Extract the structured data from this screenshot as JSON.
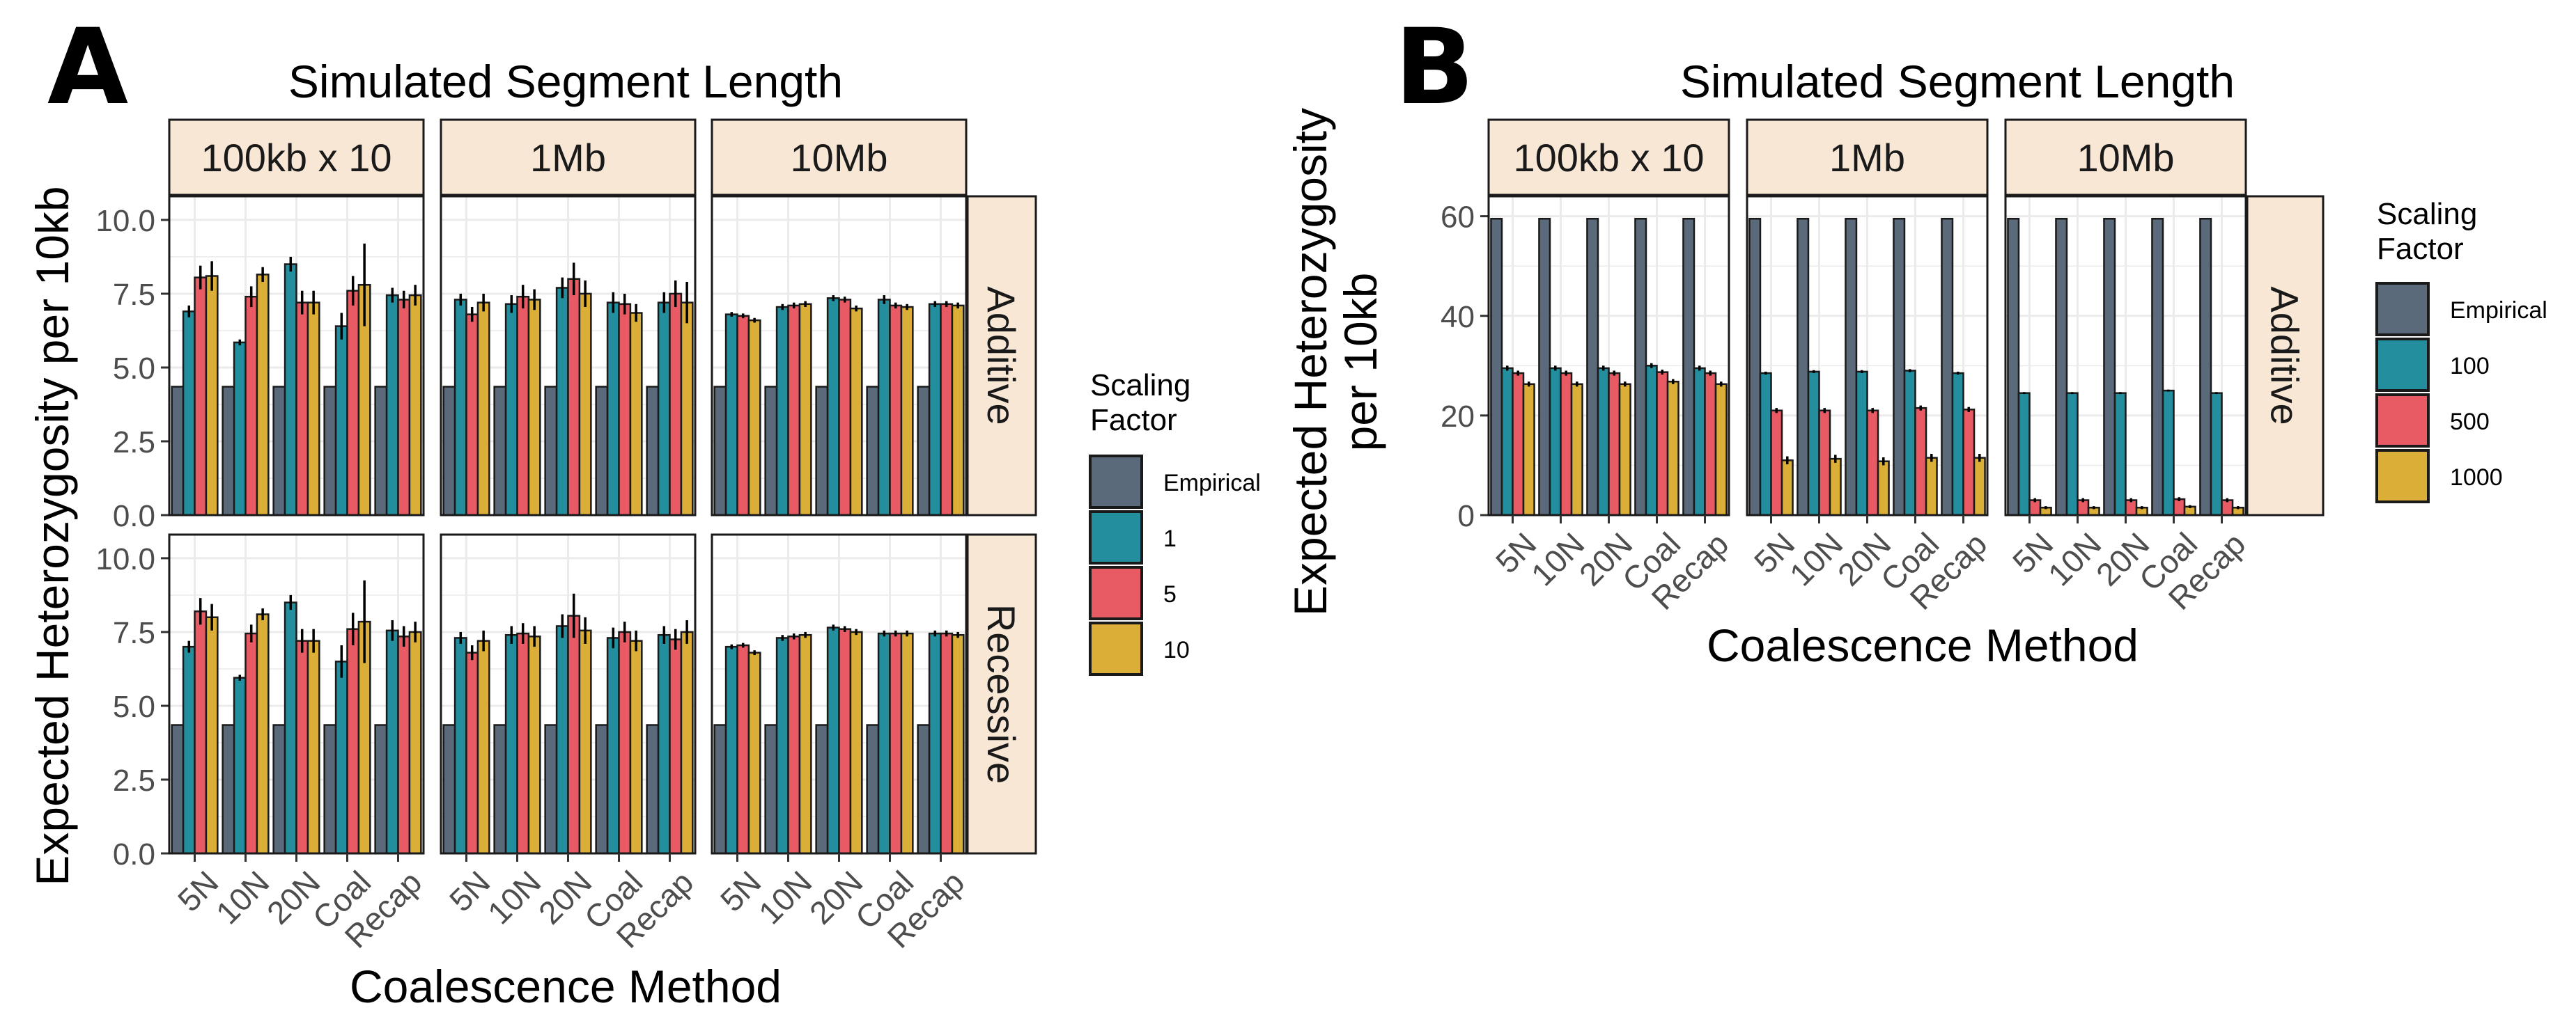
{
  "chart_data": [
    {
      "panel_label": "A",
      "type": "bar",
      "title": "Simulated Segment Length",
      "xlabel": "Coalescence Method",
      "ylabel": "Expected Heterozygosity per 10kb",
      "ylim": [
        0,
        10.8
      ],
      "yticks": [
        "0.0",
        "2.5",
        "5.0",
        "7.5",
        "10.0"
      ],
      "ytick_values": [
        0,
        2.5,
        5,
        7.5,
        10
      ],
      "grid": true,
      "legend": {
        "title": "Scaling Factor",
        "placement": "right",
        "entries": [
          "Empirical",
          "1",
          "5",
          "10"
        ]
      },
      "categories": [
        "5N",
        "10N",
        "20N",
        "Coal",
        "Recap"
      ],
      "column_facets": [
        "100kb x 10",
        "1Mb",
        "10Mb"
      ],
      "row_facets": [
        "Additive",
        "Recessive"
      ],
      "facets": [
        {
          "col": "100kb x 10",
          "row": "Additive",
          "series": [
            {
              "name": "Empirical",
              "values": [
                4.35,
                4.35,
                4.35,
                4.35,
                4.35
              ],
              "errors": [
                0,
                0,
                0,
                0,
                0
              ]
            },
            {
              "name": "1",
              "values": [
                6.9,
                5.85,
                8.5,
                6.4,
                7.45
              ],
              "errors": [
                0.2,
                0.1,
                0.25,
                0.45,
                0.25
              ]
            },
            {
              "name": "5",
              "values": [
                8.05,
                7.4,
                7.2,
                7.6,
                7.3
              ],
              "errors": [
                0.4,
                0.35,
                0.4,
                0.5,
                0.3
              ]
            },
            {
              "name": "10",
              "values": [
                8.1,
                8.15,
                7.2,
                7.8,
                7.45
              ],
              "errors": [
                0.5,
                0.25,
                0.4,
                1.4,
                0.35
              ]
            }
          ]
        },
        {
          "col": "1Mb",
          "row": "Additive",
          "series": [
            {
              "name": "Empirical",
              "values": [
                4.35,
                4.35,
                4.35,
                4.35,
                4.35
              ],
              "errors": [
                0,
                0,
                0,
                0,
                0
              ]
            },
            {
              "name": "1",
              "values": [
                7.3,
                7.15,
                7.7,
                7.2,
                7.2
              ],
              "errors": [
                0.2,
                0.3,
                0.35,
                0.35,
                0.35
              ]
            },
            {
              "name": "5",
              "values": [
                6.8,
                7.4,
                8.0,
                7.15,
                7.5
              ],
              "errors": [
                0.25,
                0.4,
                0.55,
                0.35,
                0.45
              ]
            },
            {
              "name": "10",
              "values": [
                7.2,
                7.3,
                7.5,
                6.85,
                7.2
              ],
              "errors": [
                0.3,
                0.35,
                0.45,
                0.3,
                0.7
              ]
            }
          ]
        },
        {
          "col": "10Mb",
          "row": "Additive",
          "series": [
            {
              "name": "Empirical",
              "values": [
                4.35,
                4.35,
                4.35,
                4.35,
                4.35
              ],
              "errors": [
                0,
                0,
                0,
                0,
                0
              ]
            },
            {
              "name": "1",
              "values": [
                6.8,
                7.05,
                7.35,
                7.3,
                7.15
              ],
              "errors": [
                0.08,
                0.1,
                0.1,
                0.15,
                0.1
              ]
            },
            {
              "name": "5",
              "values": [
                6.75,
                7.1,
                7.3,
                7.1,
                7.15
              ],
              "errors": [
                0.08,
                0.1,
                0.1,
                0.1,
                0.1
              ]
            },
            {
              "name": "10",
              "values": [
                6.6,
                7.15,
                7.0,
                7.05,
                7.1
              ],
              "errors": [
                0.08,
                0.1,
                0.1,
                0.1,
                0.1
              ]
            }
          ]
        },
        {
          "col": "100kb x 10",
          "row": "Recessive",
          "series": [
            {
              "name": "Empirical",
              "values": [
                4.35,
                4.35,
                4.35,
                4.35,
                4.35
              ],
              "errors": [
                0,
                0,
                0,
                0,
                0
              ]
            },
            {
              "name": "1",
              "values": [
                7.0,
                5.95,
                8.5,
                6.5,
                7.55
              ],
              "errors": [
                0.2,
                0.1,
                0.25,
                0.55,
                0.35
              ]
            },
            {
              "name": "5",
              "values": [
                8.2,
                7.45,
                7.2,
                7.6,
                7.35
              ],
              "errors": [
                0.45,
                0.3,
                0.4,
                0.55,
                0.35
              ]
            },
            {
              "name": "10",
              "values": [
                8.0,
                8.1,
                7.2,
                7.85,
                7.5
              ],
              "errors": [
                0.45,
                0.2,
                0.4,
                1.4,
                0.35
              ]
            }
          ]
        },
        {
          "col": "1Mb",
          "row": "Recessive",
          "series": [
            {
              "name": "Empirical",
              "values": [
                4.35,
                4.35,
                4.35,
                4.35,
                4.35
              ],
              "errors": [
                0,
                0,
                0,
                0,
                0
              ]
            },
            {
              "name": "1",
              "values": [
                7.3,
                7.4,
                7.7,
                7.3,
                7.4
              ],
              "errors": [
                0.2,
                0.3,
                0.4,
                0.35,
                0.3
              ]
            },
            {
              "name": "5",
              "values": [
                6.8,
                7.45,
                8.05,
                7.5,
                7.25
              ],
              "errors": [
                0.25,
                0.35,
                0.75,
                0.35,
                0.35
              ]
            },
            {
              "name": "10",
              "values": [
                7.2,
                7.35,
                7.55,
                7.2,
                7.5
              ],
              "errors": [
                0.35,
                0.35,
                0.45,
                0.35,
                0.4
              ]
            }
          ]
        },
        {
          "col": "10Mb",
          "row": "Recessive",
          "series": [
            {
              "name": "Empirical",
              "values": [
                4.35,
                4.35,
                4.35,
                4.35,
                4.35
              ],
              "errors": [
                0,
                0,
                0,
                0,
                0
              ]
            },
            {
              "name": "1",
              "values": [
                7.0,
                7.3,
                7.65,
                7.45,
                7.45
              ],
              "errors": [
                0.08,
                0.1,
                0.1,
                0.1,
                0.1
              ]
            },
            {
              "name": "5",
              "values": [
                7.05,
                7.35,
                7.6,
                7.45,
                7.45
              ],
              "errors": [
                0.08,
                0.1,
                0.1,
                0.1,
                0.1
              ]
            },
            {
              "name": "10",
              "values": [
                6.8,
                7.4,
                7.5,
                7.45,
                7.4
              ],
              "errors": [
                0.08,
                0.1,
                0.1,
                0.1,
                0.1
              ]
            }
          ]
        }
      ]
    },
    {
      "panel_label": "B",
      "type": "bar",
      "title": "Simulated Segment Length",
      "xlabel": "Coalescence Method",
      "ylabel": [
        "Expected Heterozygosity",
        "per 10kb"
      ],
      "ylim": [
        0,
        64
      ],
      "yticks": [
        "0",
        "20",
        "40",
        "60"
      ],
      "ytick_values": [
        0,
        20,
        40,
        60
      ],
      "grid": true,
      "legend": {
        "title": "Scaling Factor",
        "placement": "right",
        "entries": [
          "Empirical",
          "100",
          "500",
          "1000"
        ]
      },
      "categories": [
        "5N",
        "10N",
        "20N",
        "Coal",
        "Recap"
      ],
      "column_facets": [
        "100kb x 10",
        "1Mb",
        "10Mb"
      ],
      "row_facets": [
        "Additive"
      ],
      "facets": [
        {
          "col": "100kb x 10",
          "row": "Additive",
          "series": [
            {
              "name": "Empirical",
              "values": [
                59.5,
                59.5,
                59.5,
                59.5,
                59.5
              ],
              "errors": [
                0,
                0,
                0,
                0,
                0
              ]
            },
            {
              "name": "100",
              "values": [
                29.5,
                29.5,
                29.5,
                30.0,
                29.5
              ],
              "errors": [
                0.5,
                0.5,
                0.5,
                0.5,
                0.5
              ]
            },
            {
              "name": "500",
              "values": [
                28.5,
                28.5,
                28.5,
                28.7,
                28.5
              ],
              "errors": [
                0.5,
                0.5,
                0.5,
                0.5,
                0.5
              ]
            },
            {
              "name": "1000",
              "values": [
                26.3,
                26.3,
                26.3,
                26.8,
                26.3
              ],
              "errors": [
                0.5,
                0.5,
                0.5,
                0.5,
                0.5
              ]
            }
          ]
        },
        {
          "col": "1Mb",
          "row": "Additive",
          "series": [
            {
              "name": "Empirical",
              "values": [
                59.5,
                59.5,
                59.5,
                59.5,
                59.5
              ],
              "errors": [
                0,
                0,
                0,
                0,
                0
              ]
            },
            {
              "name": "100",
              "values": [
                28.5,
                28.8,
                28.8,
                29.0,
                28.5
              ],
              "errors": [
                0.3,
                0.3,
                0.3,
                0.3,
                0.3
              ]
            },
            {
              "name": "500",
              "values": [
                21.0,
                21.0,
                21.0,
                21.5,
                21.2
              ],
              "errors": [
                0.5,
                0.5,
                0.5,
                0.5,
                0.5
              ]
            },
            {
              "name": "1000",
              "values": [
                11.0,
                11.3,
                10.8,
                11.5,
                11.5
              ],
              "errors": [
                0.8,
                0.8,
                0.8,
                0.8,
                0.8
              ]
            }
          ]
        },
        {
          "col": "10Mb",
          "row": "Additive",
          "series": [
            {
              "name": "Empirical",
              "values": [
                59.5,
                59.5,
                59.5,
                59.5,
                59.5
              ],
              "errors": [
                0,
                0,
                0,
                0,
                0
              ]
            },
            {
              "name": "100",
              "values": [
                24.5,
                24.5,
                24.5,
                25.0,
                24.5
              ],
              "errors": [
                0.2,
                0.2,
                0.2,
                0.2,
                0.2
              ]
            },
            {
              "name": "500",
              "values": [
                3.0,
                3.0,
                3.0,
                3.2,
                3.0
              ],
              "errors": [
                0.4,
                0.4,
                0.4,
                0.4,
                0.4
              ]
            },
            {
              "name": "1000",
              "values": [
                1.5,
                1.5,
                1.5,
                1.7,
                1.5
              ],
              "errors": [
                0.3,
                0.3,
                0.3,
                0.3,
                0.3
              ]
            }
          ]
        }
      ]
    }
  ],
  "colors": {
    "series": [
      "#5a6a7a",
      "#238e9d",
      "#e85a64",
      "#dbae37"
    ],
    "strip_fill": "#f7e7d4",
    "grid": "#ebebeb",
    "axis_text": "#4d4d4d"
  }
}
